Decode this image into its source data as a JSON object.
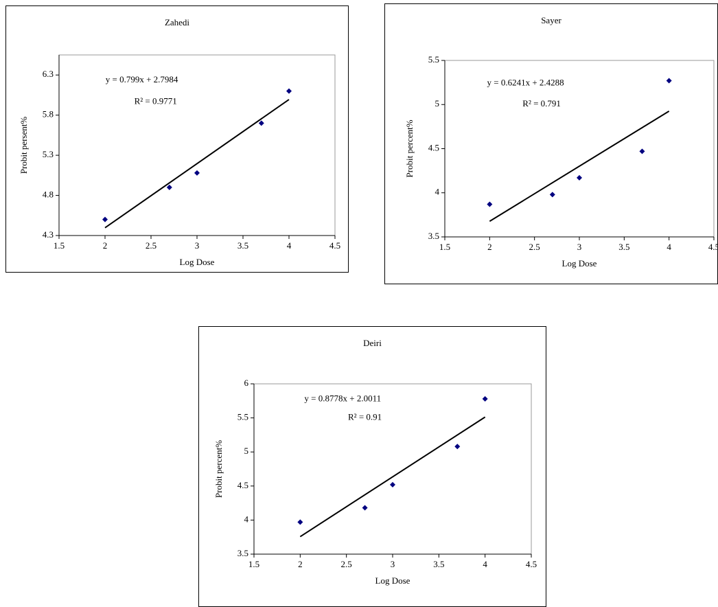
{
  "chart_data": [
    {
      "type": "scatter",
      "title": "Zahedi",
      "x_label": "Log Dose",
      "y_label": "Probit persent%",
      "x": [
        2,
        2.7,
        3,
        3.7,
        4
      ],
      "values": [
        4.5,
        4.9,
        5.08,
        5.7,
        6.1
      ],
      "color": "#000080",
      "xlim": [
        1.5,
        4.5
      ],
      "xticks": [
        1.5,
        2,
        2.5,
        3,
        3.5,
        4,
        4.5
      ],
      "ylim": [
        4.3,
        6.55
      ],
      "yticks": [
        4.3,
        4.8,
        5.3,
        5.8,
        6.3
      ],
      "trendline": {
        "slope": 0.799,
        "intercept": 2.7984,
        "equation": "y = 0.799x + 2.7984",
        "r2": "R² = 0.9771",
        "color": "#000000"
      }
    },
    {
      "type": "scatter",
      "title": "Sayer",
      "x_label": "Log Dose",
      "y_label": "Probit percent%",
      "x": [
        2,
        2.7,
        3,
        3.7,
        4
      ],
      "values": [
        3.87,
        3.98,
        4.17,
        4.47,
        5.27
      ],
      "color": "#000080",
      "xlim": [
        1.5,
        4.5
      ],
      "xticks": [
        1.5,
        2,
        2.5,
        3,
        3.5,
        4,
        4.5
      ],
      "ylim": [
        3.5,
        5.5
      ],
      "yticks": [
        3.5,
        4,
        4.5,
        5,
        5.5
      ],
      "trendline": {
        "slope": 0.6241,
        "intercept": 2.4288,
        "equation": "y = 0.6241x + 2.4288",
        "r2": "R² = 0.791",
        "color": "#000000"
      }
    },
    {
      "type": "scatter",
      "title": "Deiri",
      "x_label": "Log Dose",
      "y_label": "Probit percent%",
      "x": [
        2,
        2.7,
        3,
        3.7,
        4
      ],
      "values": [
        3.97,
        4.18,
        4.52,
        5.08,
        5.78
      ],
      "color": "#000080",
      "xlim": [
        1.5,
        4.5
      ],
      "xticks": [
        1.5,
        2,
        2.5,
        3,
        3.5,
        4,
        4.5
      ],
      "ylim": [
        3.5,
        6
      ],
      "yticks": [
        3.5,
        4,
        4.5,
        5,
        5.5,
        6
      ],
      "trendline": {
        "slope": 0.8778,
        "intercept": 2.0011,
        "equation": "y = 0.8778x + 2.0011",
        "r2": "R² = 0.91",
        "color": "#000000"
      }
    }
  ]
}
